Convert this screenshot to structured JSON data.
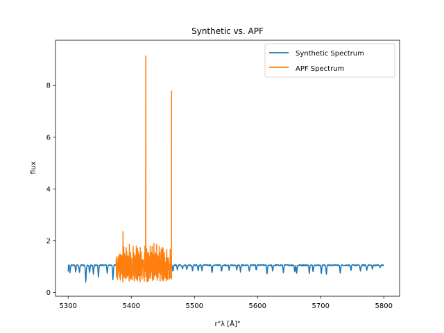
{
  "chart_data": {
    "type": "line",
    "title": "Synthetic vs. APF",
    "xlabel": "r\"λ [Å]\"",
    "ylabel": "flux",
    "xlim": [
      5280,
      5825
    ],
    "ylim": [
      -0.15,
      9.75
    ],
    "xticks": [
      5300,
      5400,
      5500,
      5600,
      5700,
      5800
    ],
    "xtick_labels": [
      "5300",
      "5400",
      "5500",
      "5600",
      "5700",
      "5800"
    ],
    "yticks": [
      0,
      2,
      4,
      6,
      8
    ],
    "ytick_labels": [
      "0",
      "2",
      "4",
      "6",
      "8"
    ],
    "grid": false,
    "legend_position": "top-right",
    "series": [
      {
        "name": "Synthetic Spectrum",
        "color": "#1f77b4",
        "x_range": [
          5300,
          5800
        ],
        "baseline": 1.05,
        "noise": 0.05,
        "absorption_lines": [
          [
            5303,
            0.28
          ],
          [
            5312,
            0.25
          ],
          [
            5318,
            0.3
          ],
          [
            5328,
            0.65
          ],
          [
            5334,
            0.3
          ],
          [
            5340,
            0.35
          ],
          [
            5348,
            0.45
          ],
          [
            5362,
            0.3
          ],
          [
            5371,
            0.55
          ],
          [
            5385,
            0.3
          ],
          [
            5397,
            0.35
          ],
          [
            5405,
            0.3
          ],
          [
            5411,
            0.4
          ],
          [
            5424,
            0.35
          ],
          [
            5434,
            0.5
          ],
          [
            5446,
            0.3
          ],
          [
            5455,
            0.4
          ],
          [
            5466,
            0.25
          ],
          [
            5473,
            0.2
          ],
          [
            5481,
            0.15
          ],
          [
            5488,
            0.17
          ],
          [
            5497,
            0.2
          ],
          [
            5506,
            0.22
          ],
          [
            5512,
            0.2
          ],
          [
            5528,
            0.3
          ],
          [
            5543,
            0.25
          ],
          [
            5555,
            0.2
          ],
          [
            5567,
            0.2
          ],
          [
            5573,
            0.25
          ],
          [
            5587,
            0.25
          ],
          [
            5598,
            0.2
          ],
          [
            5615,
            0.35
          ],
          [
            5624,
            0.25
          ],
          [
            5641,
            0.3
          ],
          [
            5659,
            0.25
          ],
          [
            5662,
            0.3
          ],
          [
            5682,
            0.3
          ],
          [
            5688,
            0.25
          ],
          [
            5701,
            0.3
          ],
          [
            5709,
            0.35
          ],
          [
            5731,
            0.3
          ],
          [
            5748,
            0.2
          ],
          [
            5763,
            0.25
          ],
          [
            5773,
            0.2
          ],
          [
            5782,
            0.15
          ],
          [
            5794,
            0.1
          ]
        ]
      },
      {
        "name": "APF Spectrum",
        "color": "#ff7f0e",
        "x_range": [
          5376,
          5464
        ],
        "baseline": 1.0,
        "noise": 0.45,
        "spikes": [
          [
            5387,
            2.35
          ],
          [
            5397,
            1.85
          ],
          [
            5423,
            9.15
          ],
          [
            5436,
            1.9
          ],
          [
            5440,
            1.85
          ],
          [
            5464,
            7.8
          ]
        ]
      }
    ]
  }
}
